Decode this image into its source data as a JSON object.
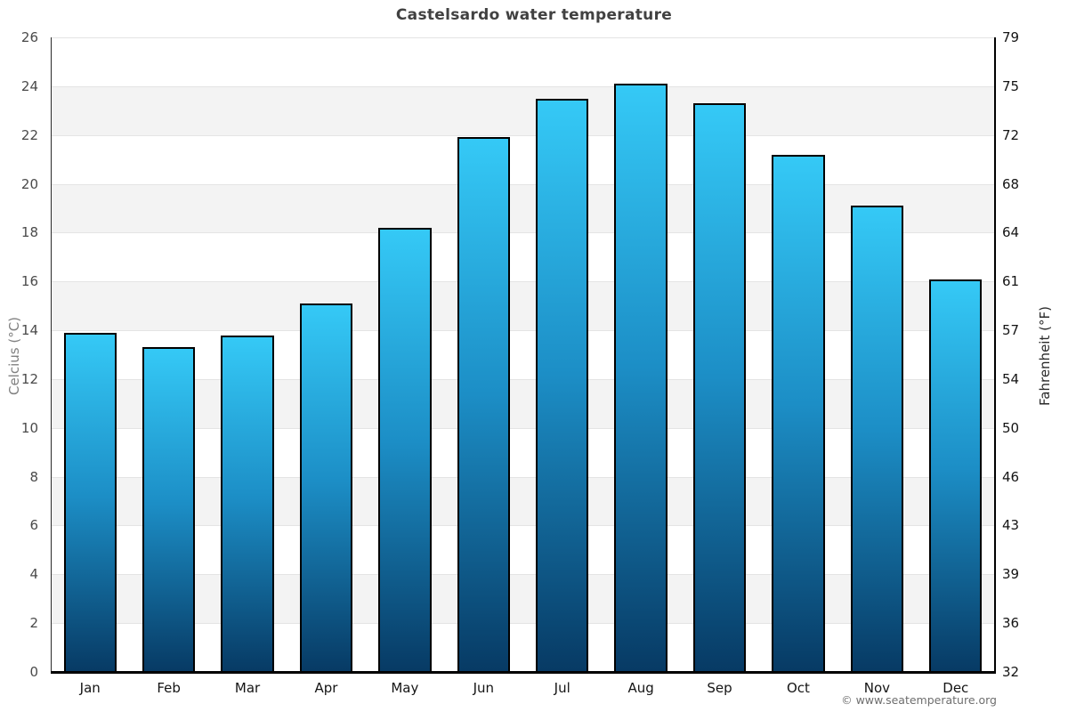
{
  "title": "Castelsardo water temperature",
  "copyright": "© www.seatemperature.org",
  "chart_data": {
    "type": "bar",
    "title": "Castelsardo water temperature",
    "categories": [
      "Jan",
      "Feb",
      "Mar",
      "Apr",
      "May",
      "Jun",
      "Jul",
      "Aug",
      "Sep",
      "Oct",
      "Nov",
      "Dec"
    ],
    "values": [
      13.9,
      13.3,
      13.8,
      15.1,
      18.2,
      21.9,
      23.5,
      24.1,
      23.3,
      21.2,
      19.1,
      16.1
    ],
    "unit": "°C",
    "xlabel": "",
    "ylabel_left": "Celcius (°C)",
    "ylabel_right": "Fahrenheit (°F)",
    "ylim_left": [
      0,
      26
    ],
    "ylim_right": [
      32,
      79
    ],
    "yticks_left": [
      0,
      2,
      4,
      6,
      8,
      10,
      12,
      14,
      16,
      18,
      20,
      22,
      24,
      26
    ],
    "yticks_right": [
      32,
      36,
      39,
      43,
      46,
      50,
      54,
      57,
      61,
      64,
      68,
      72,
      75,
      79
    ],
    "grid": "alternating-horizontal-bands",
    "legend": "none",
    "colors": {
      "bar_top": "#35c9f6",
      "bar_mid": "#1c8ec6",
      "bar_bottom": "#073a64",
      "bar_border": "#000000",
      "band_gray": "#f3f3f3",
      "band_white": "#ffffff",
      "gridline": "#e4e4e4",
      "axis_line": "#000000",
      "title_text": "#414141",
      "left_tick_text": "#4a4a4a",
      "left_axis_title_text": "#808080",
      "right_tick_text": "#141414",
      "right_axis_title_text": "#2a2a2a",
      "month_text": "#141414",
      "copyright_text": "#6e6e6e"
    }
  }
}
